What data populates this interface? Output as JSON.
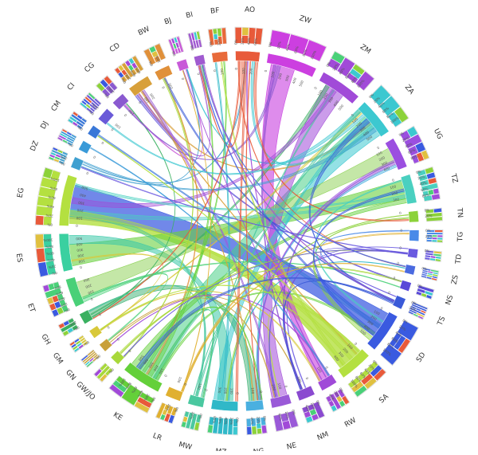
{
  "diagram": {
    "type": "chord",
    "colors": {
      "background": "#ffffff",
      "ring_outline": "#d0d0d0",
      "label": "#333333",
      "tick_label": "#555555",
      "link_opacity_strong": 0.72,
      "link_opacity_faint": 0.45
    },
    "segments": [
      {
        "label": "AO",
        "color": "#e85a3a"
      },
      {
        "label": "ZW",
        "color": "#cc3fe0"
      },
      {
        "label": "ZM",
        "color": "#a14ad8"
      },
      {
        "label": "ZA",
        "color": "#3cc8d0"
      },
      {
        "label": "UG",
        "color": "#9b4fe0"
      },
      {
        "label": "TZ",
        "color": "#4ad0c0"
      },
      {
        "label": "TN",
        "color": "#8cd23a"
      },
      {
        "label": "TG",
        "color": "#4a8ae8"
      },
      {
        "label": "TD",
        "color": "#6a5ae0"
      },
      {
        "label": "ZS",
        "color": "#4a6ae0"
      },
      {
        "label": "NS",
        "color": "#5a4ad8"
      },
      {
        "label": "TS",
        "color": "#3a5ad8"
      },
      {
        "label": "SD",
        "color": "#3a5ae0"
      },
      {
        "label": "SA",
        "color": "#b4e040"
      },
      {
        "label": "RW",
        "color": "#a04ad8"
      },
      {
        "label": "NM",
        "color": "#8a4ad0"
      },
      {
        "label": "NE",
        "color": "#9a5ad8"
      },
      {
        "label": "NG",
        "color": "#4ab0e0"
      },
      {
        "label": "MZ",
        "color": "#30b8c8"
      },
      {
        "label": "MW",
        "color": "#4ac8a0"
      },
      {
        "label": "LR",
        "color": "#e0b030"
      },
      {
        "label": "KE",
        "color": "#64d03a"
      },
      {
        "label": "GW/JO",
        "color": "#a8d83a"
      },
      {
        "label": "GN",
        "color": "#c8a03a"
      },
      {
        "label": "GM",
        "color": "#d8c83a"
      },
      {
        "label": "GH",
        "color": "#3ab060"
      },
      {
        "label": "ET",
        "color": "#4ad078"
      },
      {
        "label": "ES",
        "color": "#3ad0a0"
      },
      {
        "label": "EG",
        "color": "#b4e040"
      },
      {
        "label": "DZ",
        "color": "#40a0d0"
      },
      {
        "label": "DJ",
        "color": "#3a9ad8"
      },
      {
        "label": "CM",
        "color": "#3a78d8"
      },
      {
        "label": "CI",
        "color": "#6a5ad8"
      },
      {
        "label": "CG",
        "color": "#8a5ad0"
      },
      {
        "label": "CD",
        "color": "#d8a03a"
      },
      {
        "label": "BW",
        "color": "#e0903a"
      },
      {
        "label": "BJ",
        "color": "#c85ad8"
      },
      {
        "label": "BI",
        "color": "#a05ad0"
      },
      {
        "label": "BF",
        "color": "#e86a3a"
      }
    ],
    "outer_tick_labels": [
      "0%",
      "20%",
      "40%",
      "60%",
      "80%",
      "100%"
    ],
    "inner_tick_labels": [
      "0",
      "100",
      "200",
      "300",
      "400",
      "500"
    ]
  }
}
